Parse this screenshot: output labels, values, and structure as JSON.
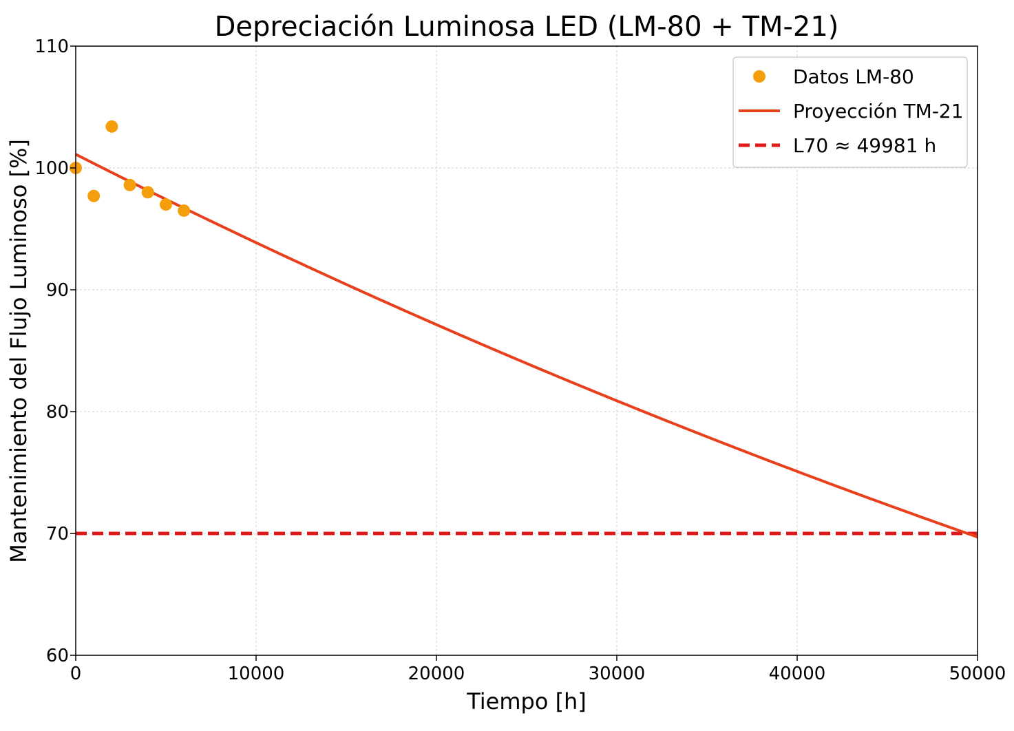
{
  "chart_data": {
    "type": "line",
    "title": "Depreciación Luminosa LED (LM-80 + TM-21)",
    "xlabel": "Tiempo [h]",
    "ylabel": "Mantenimiento del Flujo Luminoso [%]",
    "xlim": [
      0,
      50000
    ],
    "ylim": [
      60,
      110
    ],
    "xticks": [
      0,
      10000,
      20000,
      30000,
      40000,
      50000
    ],
    "yticks": [
      60,
      70,
      80,
      90,
      100,
      110
    ],
    "grid": true,
    "legend_position": "top-right",
    "series": [
      {
        "name": "Datos LM-80",
        "kind": "scatter",
        "color": "#f59e0b",
        "x": [
          0,
          1000,
          2000,
          3000,
          4000,
          5000,
          6000
        ],
        "y": [
          100.0,
          97.7,
          103.4,
          98.6,
          98.0,
          97.0,
          96.5
        ]
      },
      {
        "name": "Proyección TM-21",
        "kind": "line",
        "color": "#e8401c",
        "B": 1.0112,
        "alpha": 7.44e-06,
        "x_range": [
          0,
          50000
        ]
      },
      {
        "name": "L70 ≈ 49981 h",
        "kind": "hline",
        "color": "#e01818",
        "y": 70
      }
    ]
  }
}
